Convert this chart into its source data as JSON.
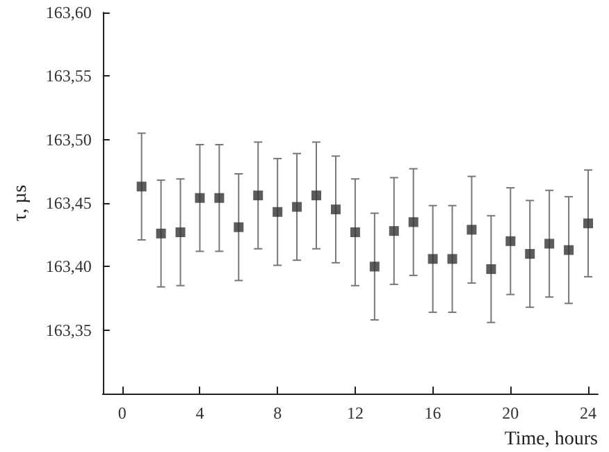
{
  "chart_data": {
    "type": "scatter",
    "xlabel": "Time, hours",
    "ylabel": "τ, µs",
    "x": [
      1,
      2,
      3,
      4,
      5,
      6,
      7,
      8,
      9,
      10,
      11,
      12,
      13,
      14,
      15,
      16,
      17,
      18,
      19,
      20,
      21,
      22,
      23,
      24
    ],
    "series": [
      {
        "color": "#333333",
        "values": [
          163.463,
          163.426,
          163.427,
          163.454,
          163.454,
          163.431,
          163.456,
          163.443,
          163.447,
          163.456,
          163.445,
          163.427,
          163.4,
          163.428,
          163.435,
          163.406,
          163.406,
          163.429,
          163.398,
          163.42,
          163.41,
          163.418,
          163.413,
          163.434
        ],
        "errors": [
          0.042,
          0.042,
          0.042,
          0.042,
          0.042,
          0.042,
          0.042,
          0.042,
          0.042,
          0.042,
          0.042,
          0.042,
          0.042,
          0.042,
          0.042,
          0.042,
          0.042,
          0.042,
          0.042,
          0.042,
          0.042,
          0.042,
          0.042,
          0.042
        ]
      }
    ],
    "xlim": [
      -1,
      24.5
    ],
    "xticks": [
      0,
      4,
      8,
      12,
      16,
      20,
      24
    ],
    "ylim": [
      163.3,
      163.6
    ],
    "yticks": [
      {
        "value": 163.3,
        "label": null
      },
      {
        "value": 163.35,
        "label": "163,35"
      },
      {
        "value": 163.4,
        "label": "163,40"
      },
      {
        "value": 163.45,
        "label": "163,45"
      },
      {
        "value": 163.5,
        "label": "163,50"
      },
      {
        "value": 163.55,
        "label": "163,55"
      },
      {
        "value": 163.6,
        "label": "163,60"
      }
    ],
    "marker": "square",
    "grid": false
  }
}
